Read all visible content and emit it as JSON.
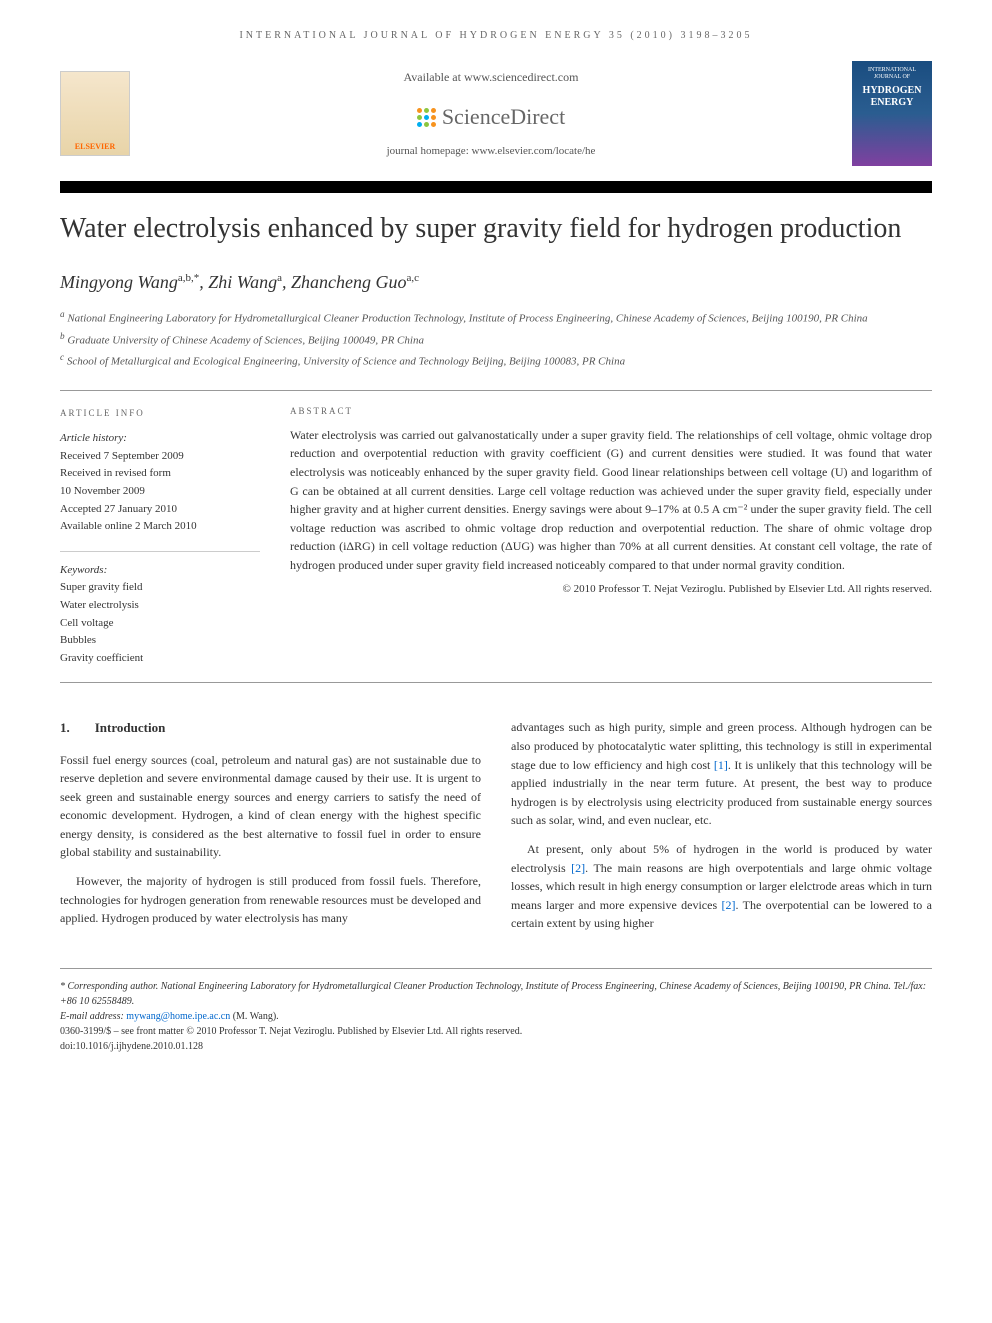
{
  "header": {
    "journal_info": "INTERNATIONAL JOURNAL OF HYDROGEN ENERGY 35 (2010) 3198–3205",
    "available_at": "Available at www.sciencedirect.com",
    "sd_brand": "ScienceDirect",
    "homepage_label": "journal homepage: ",
    "homepage_url": "www.elsevier.com/locate/he",
    "elsevier_label": "ELSEVIER",
    "cover_title": "HYDROGEN ENERGY"
  },
  "sd_dot_colors": [
    "#f7931e",
    "#8cc63f",
    "#f7931e",
    "#8cc63f",
    "#00aeef",
    "#f7931e",
    "#00aeef",
    "#8cc63f",
    "#f7931e"
  ],
  "article": {
    "title": "Water electrolysis enhanced by super gravity field for hydrogen production",
    "authors": [
      {
        "name": "Mingyong Wang",
        "sup": "a,b,*"
      },
      {
        "name": "Zhi Wang",
        "sup": "a"
      },
      {
        "name": "Zhancheng Guo",
        "sup": "a,c"
      }
    ],
    "affiliations": [
      {
        "sup": "a",
        "text": "National Engineering Laboratory for Hydrometallurgical Cleaner Production Technology, Institute of Process Engineering, Chinese Academy of Sciences, Beijing 100190, PR China"
      },
      {
        "sup": "b",
        "text": "Graduate University of Chinese Academy of Sciences, Beijing 100049, PR China"
      },
      {
        "sup": "c",
        "text": "School of Metallurgical and Ecological Engineering, University of Science and Technology Beijing, Beijing 100083, PR China"
      }
    ]
  },
  "info": {
    "heading": "ARTICLE INFO",
    "history_label": "Article history:",
    "history": [
      "Received 7 September 2009",
      "Received in revised form",
      "10 November 2009",
      "Accepted 27 January 2010",
      "Available online 2 March 2010"
    ],
    "keywords_label": "Keywords:",
    "keywords": [
      "Super gravity field",
      "Water electrolysis",
      "Cell voltage",
      "Bubbles",
      "Gravity coefficient"
    ]
  },
  "abstract": {
    "heading": "ABSTRACT",
    "text": "Water electrolysis was carried out galvanostatically under a super gravity field. The relationships of cell voltage, ohmic voltage drop reduction and overpotential reduction with gravity coefficient (G) and current densities were studied. It was found that water electrolysis was noticeably enhanced by the super gravity field. Good linear relationships between cell voltage (U) and logarithm of G can be obtained at all current densities. Large cell voltage reduction was achieved under the super gravity field, especially under higher gravity and at higher current densities. Energy savings were about 9–17% at 0.5 A cm⁻² under the super gravity field. The cell voltage reduction was ascribed to ohmic voltage drop reduction and overpotential reduction. The share of ohmic voltage drop reduction (iΔRG) in cell voltage reduction (ΔUG) was higher than 70% at all current densities. At constant cell voltage, the rate of hydrogen produced under super gravity field increased noticeably compared to that under normal gravity condition.",
    "copyright": "© 2010 Professor T. Nejat Veziroglu. Published by Elsevier Ltd. All rights reserved."
  },
  "sections": {
    "intro_num": "1.",
    "intro_title": "Introduction",
    "col1_paras": [
      "Fossil fuel energy sources (coal, petroleum and natural gas) are not sustainable due to reserve depletion and severe environmental damage caused by their use. It is urgent to seek green and sustainable energy sources and energy carriers to satisfy the need of economic development. Hydrogen, a kind of clean energy with the highest specific energy density, is considered as the best alternative to fossil fuel in order to ensure global stability and sustainability.",
      "However, the majority of hydrogen is still produced from fossil fuels. Therefore, technologies for hydrogen generation from renewable resources must be developed and applied. Hydrogen produced by water electrolysis has many"
    ],
    "col2_paras": [
      "advantages such as high purity, simple and green process. Although hydrogen can be also produced by photocatalytic water splitting, this technology is still in experimental stage due to low efficiency and high cost [1]. It is unlikely that this technology will be applied industrially in the near term future. At present, the best way to produce hydrogen is by electrolysis using electricity produced from sustainable energy sources such as solar, wind, and even nuclear, etc.",
      "At present, only about 5% of hydrogen in the world is produced by water electrolysis [2]. The main reasons are high overpotentials and large ohmic voltage losses, which result in high energy consumption or larger elelctrode areas which in turn means larger and more expensive devices [2]. The overpotential can be lowered to a certain extent by using higher"
    ]
  },
  "footer": {
    "corresponding": "* Corresponding author. National Engineering Laboratory for Hydrometallurgical Cleaner Production Technology, Institute of Process Engineering, Chinese Academy of Sciences, Beijing 100190, PR China. Tel./fax: +86 10 62558489.",
    "email_label": "E-mail address: ",
    "email": "mywang@home.ipe.ac.cn",
    "email_name": " (M. Wang).",
    "issn_line": "0360-3199/$ – see front matter © 2010 Professor T. Nejat Veziroglu. Published by Elsevier Ltd. All rights reserved.",
    "doi": "doi:10.1016/j.ijhydene.2010.01.128"
  }
}
